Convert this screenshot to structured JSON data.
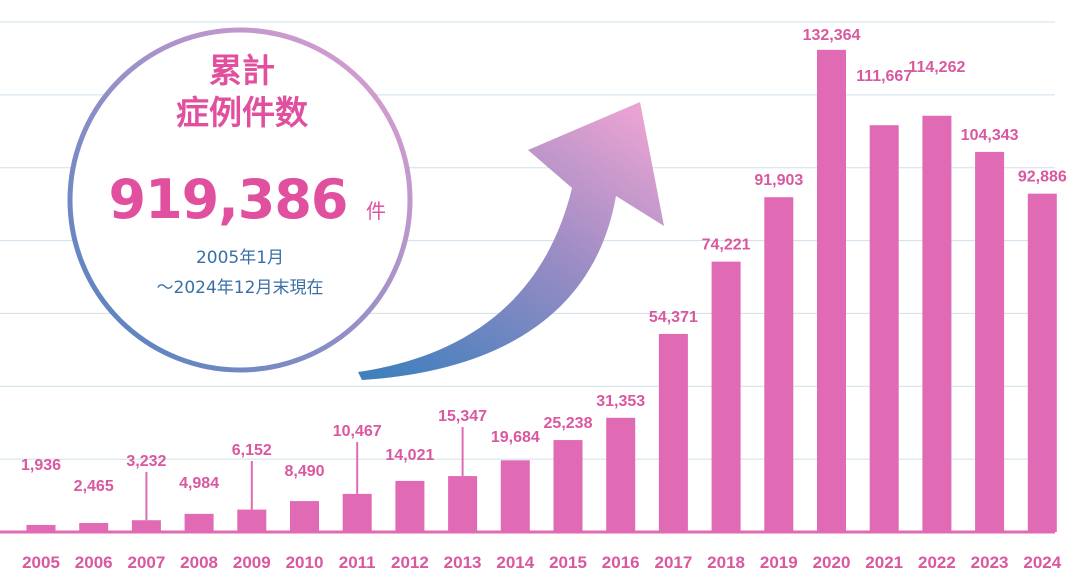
{
  "summary": {
    "title_line1": "累計",
    "title_line2": "症例件数",
    "total": "919,386",
    "unit": "件",
    "period_line1": "2005年1月",
    "period_line2": "～2024年12月末現在"
  },
  "colors": {
    "bar": "#e06ab4",
    "label": "#d9589f",
    "grid": "#cfe0ea",
    "title": "#e0509e",
    "period": "#3a6fa6",
    "ring_start": "#4a80bf",
    "ring_end": "#e7a0d1"
  },
  "chart_data": {
    "type": "bar",
    "categories": [
      "2005",
      "2006",
      "2007",
      "2008",
      "2009",
      "2010",
      "2011",
      "2012",
      "2013",
      "2014",
      "2015",
      "2016",
      "2017",
      "2018",
      "2019",
      "2020",
      "2021",
      "2022",
      "2023",
      "2024"
    ],
    "values": [
      1936,
      2465,
      3232,
      4984,
      6152,
      8490,
      10467,
      14021,
      15347,
      19684,
      25238,
      31353,
      54371,
      74221,
      91903,
      132364,
      111667,
      114262,
      104343,
      92886
    ],
    "labels": [
      "1,936",
      "2,465",
      "3,232",
      "4,984",
      "6,152",
      "8,490",
      "10,467",
      "14,021",
      "15,347",
      "19,684",
      "25,238",
      "31,353",
      "54,371",
      "74,221",
      "91,903",
      "132,364",
      "111,667",
      "114,262",
      "104,343",
      "92,886"
    ],
    "ylim": [
      0,
      140000
    ],
    "grid": true,
    "title": "",
    "xlabel": "",
    "ylabel": ""
  }
}
